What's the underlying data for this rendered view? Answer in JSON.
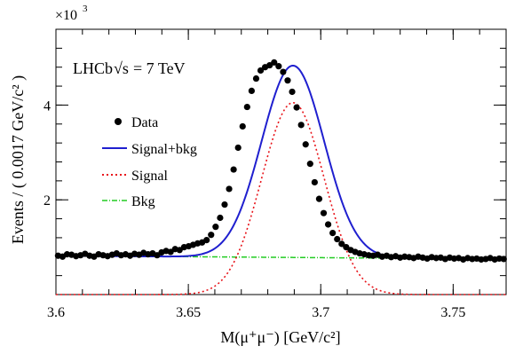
{
  "chart_data": {
    "type": "scatter",
    "annotation_experiment": "LHCb",
    "annotation_energy": "= 7 TeV",
    "annotation_sqrt_s": "√s",
    "exponent_label": "×10",
    "exponent_power": "3",
    "xlabel": "M(μ⁺μ⁻) [GeV/c²]",
    "ylabel": "Events / ( 0.0017 GeV/c² )",
    "xlim": [
      3.6,
      3.77
    ],
    "ylim": [
      0,
      5.6
    ],
    "x_ticks": [
      "3.6",
      "3.65",
      "3.7",
      "3.75"
    ],
    "x_tick_values": [
      3.6,
      3.65,
      3.7,
      3.75
    ],
    "y_ticks": [
      "2",
      "4"
    ],
    "y_tick_values": [
      2,
      4
    ],
    "legend": [
      "Data",
      "Signal+bkg",
      "Signal",
      "Bkg"
    ],
    "legend_position": "left",
    "grid": false,
    "colors": {
      "data": "#000000",
      "signal_bkg": "#1f1fcf",
      "signal": "#e8141a",
      "bkg": "#22cc22"
    },
    "model": {
      "peak_x": 3.6895,
      "sigma": 0.0118,
      "signal_peak": 4.05,
      "bkg_left": 0.82,
      "bkg_right": 0.75
    },
    "series": [
      {
        "name": "Data",
        "x": [
          3.6008,
          3.6025,
          3.6042,
          3.6059,
          3.6076,
          3.6093,
          3.611,
          3.6127,
          3.6144,
          3.6161,
          3.6178,
          3.6195,
          3.6212,
          3.6229,
          3.6246,
          3.6263,
          3.628,
          3.6297,
          3.6314,
          3.6331,
          3.6348,
          3.6365,
          3.6382,
          3.6399,
          3.6416,
          3.6433,
          3.645,
          3.6467,
          3.6484,
          3.6501,
          3.6518,
          3.6535,
          3.6552,
          3.6569,
          3.6586,
          3.6603,
          3.662,
          3.6637,
          3.6654,
          3.6671,
          3.6688,
          3.6705,
          3.6722,
          3.6739,
          3.6756,
          3.6773,
          3.679,
          3.6807,
          3.6824,
          3.6841,
          3.6858,
          3.6875,
          3.6892,
          3.6909,
          3.6926,
          3.6943,
          3.696,
          3.6977,
          3.6994,
          3.7011,
          3.7028,
          3.7045,
          3.7062,
          3.7079,
          3.7096,
          3.7113,
          3.713,
          3.7147,
          3.7164,
          3.7181,
          3.7198,
          3.7215,
          3.7232,
          3.7249,
          3.7266,
          3.7283,
          3.73,
          3.7317,
          3.7334,
          3.7351,
          3.7368,
          3.7385,
          3.7402,
          3.7419,
          3.7436,
          3.7453,
          3.747,
          3.7487,
          3.7504,
          3.7521,
          3.7538,
          3.7555,
          3.7572,
          3.7589,
          3.7606,
          3.7623,
          3.764,
          3.7657,
          3.7674,
          3.7691
        ],
        "y": [
          0.82,
          0.8,
          0.85,
          0.84,
          0.81,
          0.83,
          0.86,
          0.82,
          0.8,
          0.85,
          0.83,
          0.81,
          0.84,
          0.87,
          0.83,
          0.85,
          0.82,
          0.86,
          0.84,
          0.88,
          0.85,
          0.87,
          0.83,
          0.89,
          0.92,
          0.9,
          0.96,
          0.94,
          1.0,
          1.02,
          1.05,
          1.08,
          1.1,
          1.15,
          1.26,
          1.43,
          1.62,
          1.9,
          2.23,
          2.64,
          3.1,
          3.55,
          3.96,
          4.3,
          4.56,
          4.73,
          4.8,
          4.84,
          4.9,
          4.82,
          4.7,
          4.52,
          4.28,
          3.95,
          3.58,
          3.17,
          2.76,
          2.37,
          2.02,
          1.72,
          1.48,
          1.3,
          1.17,
          1.07,
          1.0,
          0.94,
          0.9,
          0.87,
          0.85,
          0.83,
          0.82,
          0.84,
          0.8,
          0.82,
          0.79,
          0.81,
          0.78,
          0.8,
          0.79,
          0.77,
          0.8,
          0.78,
          0.76,
          0.79,
          0.77,
          0.78,
          0.75,
          0.78,
          0.76,
          0.77,
          0.74,
          0.77,
          0.75,
          0.76,
          0.74,
          0.75,
          0.77,
          0.74,
          0.76,
          0.75
        ]
      },
      {
        "name": "Signal+bkg",
        "style": "solid"
      },
      {
        "name": "Signal",
        "style": "dotted"
      },
      {
        "name": "Bkg",
        "style": "dash-dot"
      }
    ]
  }
}
